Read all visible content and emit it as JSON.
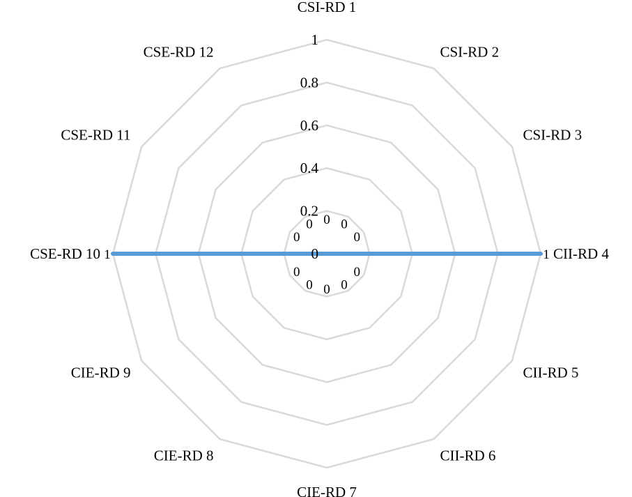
{
  "chart_data": {
    "type": "radar",
    "title": "",
    "categories": [
      "CSI-RD 1",
      "CSI-RD 2",
      "CSI-RD 3",
      "CII-RD 4",
      "CII-RD 5",
      "CII-RD 6",
      "CIE-RD 7",
      "CIE-RD 8",
      "CIE-RD 9",
      "CSE-RD 10",
      "CSE-RD 11",
      "CSE-RD 12"
    ],
    "series": [
      {
        "values": [
          0,
          0,
          0,
          1,
          0,
          0,
          0,
          0,
          0,
          1,
          0,
          0
        ],
        "data_labels": [
          "0",
          "0",
          "0",
          "1",
          "0",
          "0",
          "0",
          "0",
          "0",
          "1",
          "0",
          "0"
        ],
        "color": "#5b9bd5"
      }
    ],
    "rlim": [
      0,
      1
    ],
    "ticks": [
      0,
      0.2,
      0.4,
      0.6,
      0.8,
      1
    ],
    "tick_labels": [
      "0",
      "0.2",
      "0.4",
      "0.6",
      "0.8",
      "1"
    ],
    "grid": true,
    "grid_color": "#d9d9d9",
    "legend": "none"
  }
}
